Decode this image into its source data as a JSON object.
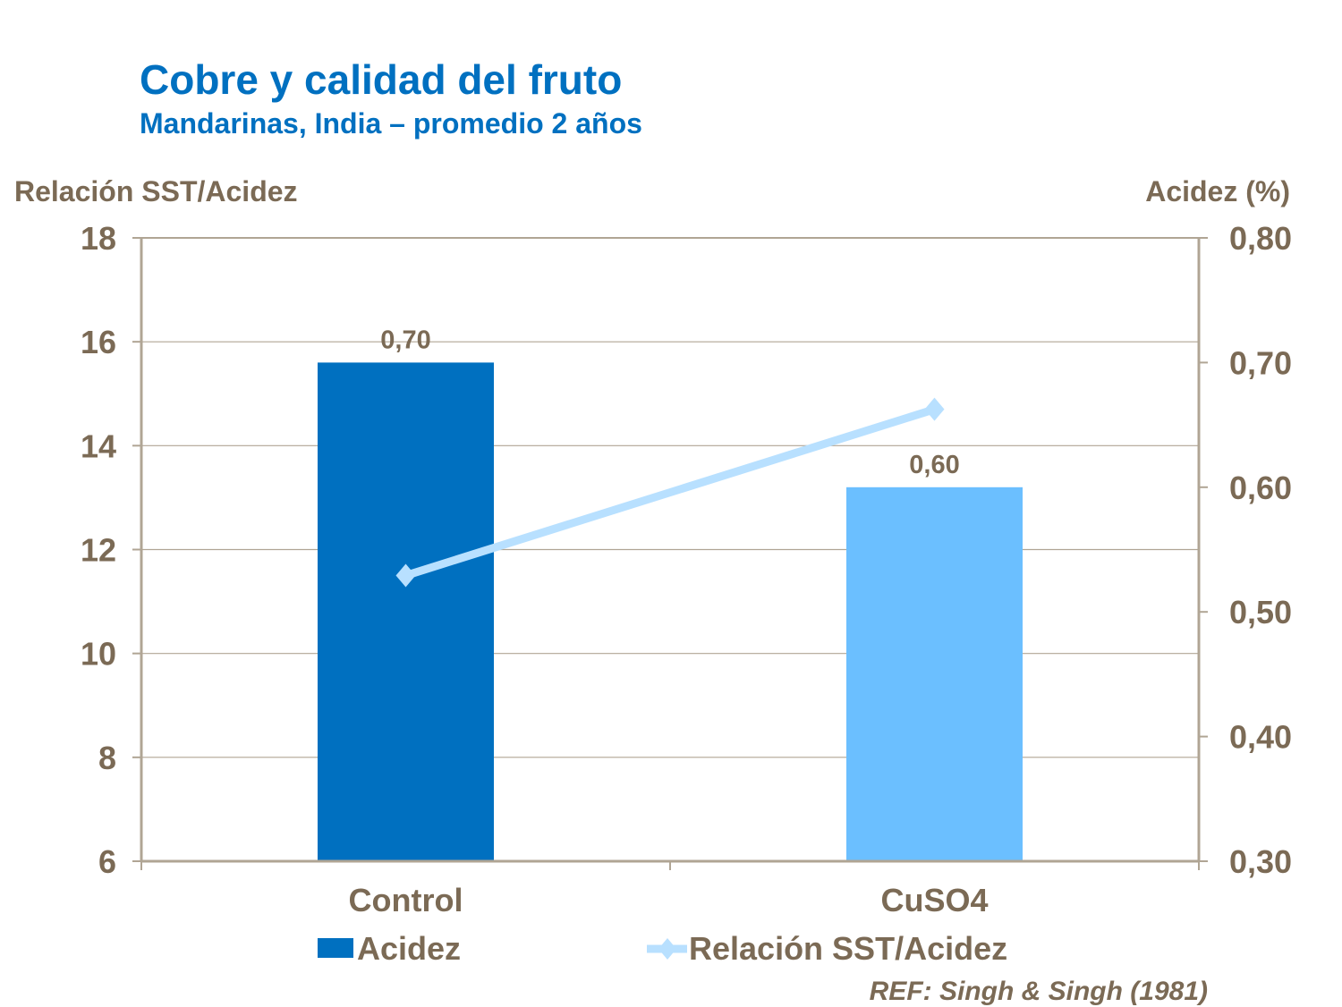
{
  "title": "Cobre y calidad del fruto",
  "subtitle": "Mandarinas, India – promedio 2 años",
  "reference": "REF: Singh & Singh (1981)",
  "colors": {
    "title": "#0070c0",
    "text": "#7b6a55",
    "axis": "#b0a594",
    "bar_control": "#0070c0",
    "bar_cuso4": "#6bbfff",
    "line": "#b8e0ff"
  },
  "chart_data": {
    "type": "bar+line",
    "categories": [
      "Control",
      "CuSO4"
    ],
    "ylabel": "Relación SST/Acidez",
    "y2label": "Acidez (%)",
    "ylim": [
      6,
      18
    ],
    "yticks": [
      "6",
      "8",
      "10",
      "12",
      "14",
      "16",
      "18"
    ],
    "y2lim": [
      0.3,
      0.8
    ],
    "y2ticks": [
      "0,30",
      "0,40",
      "0,50",
      "0,60",
      "0,70",
      "0,80"
    ],
    "grid": true,
    "legend_position": "bottom",
    "series": [
      {
        "name": "Acidez",
        "type": "bar",
        "axis": "right",
        "values": [
          0.7,
          0.6
        ],
        "labels": [
          "0,70",
          "0,60"
        ]
      },
      {
        "name": "Relación SST/Acidez",
        "type": "line",
        "axis": "left",
        "marker": "diamond",
        "values": [
          11.5,
          14.7
        ]
      }
    ]
  }
}
